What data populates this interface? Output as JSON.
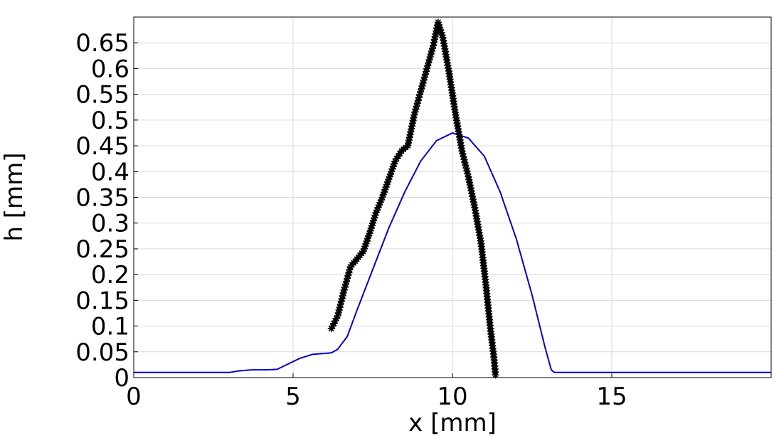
{
  "chart_data": {
    "type": "line",
    "xlabel": "x [mm]",
    "ylabel": "h [mm]",
    "xlim": [
      0,
      20
    ],
    "ylim": [
      0,
      0.7
    ],
    "x_ticks": [
      "0",
      "5",
      "10",
      "15"
    ],
    "y_ticks": [
      "0",
      "0.05",
      "0.1",
      "0.15",
      "0.2",
      "0.25",
      "0.3",
      "0.35",
      "0.4",
      "0.45",
      "0.5",
      "0.55",
      "0.6",
      "0.65"
    ],
    "grid": true,
    "legend": "none",
    "series": [
      {
        "color": "#0000cc",
        "marker": "none",
        "points": [
          [
            0,
            0.01
          ],
          [
            3.0,
            0.01
          ],
          [
            3.3,
            0.013
          ],
          [
            3.7,
            0.015
          ],
          [
            4.2,
            0.015
          ],
          [
            4.5,
            0.016
          ],
          [
            4.8,
            0.025
          ],
          [
            5.2,
            0.037
          ],
          [
            5.6,
            0.045
          ],
          [
            6.0,
            0.047
          ],
          [
            6.2,
            0.048
          ],
          [
            6.4,
            0.055
          ],
          [
            6.7,
            0.08
          ],
          [
            7.0,
            0.13
          ],
          [
            7.5,
            0.21
          ],
          [
            8.0,
            0.29
          ],
          [
            8.5,
            0.36
          ],
          [
            9.0,
            0.42
          ],
          [
            9.5,
            0.46
          ],
          [
            10.0,
            0.475
          ],
          [
            10.5,
            0.465
          ],
          [
            11.0,
            0.43
          ],
          [
            11.5,
            0.36
          ],
          [
            12.0,
            0.27
          ],
          [
            12.5,
            0.16
          ],
          [
            12.9,
            0.06
          ],
          [
            13.1,
            0.015
          ],
          [
            13.2,
            0.01
          ],
          [
            14.0,
            0.01
          ],
          [
            20.0,
            0.01
          ]
        ]
      },
      {
        "color": "#000000",
        "marker": "star",
        "points": [
          [
            6.2,
            0.095
          ],
          [
            6.4,
            0.12
          ],
          [
            6.6,
            0.17
          ],
          [
            6.8,
            0.215
          ],
          [
            7.0,
            0.23
          ],
          [
            7.2,
            0.245
          ],
          [
            7.4,
            0.28
          ],
          [
            7.6,
            0.32
          ],
          [
            7.8,
            0.35
          ],
          [
            8.0,
            0.385
          ],
          [
            8.2,
            0.42
          ],
          [
            8.4,
            0.44
          ],
          [
            8.6,
            0.45
          ],
          [
            8.8,
            0.51
          ],
          [
            9.0,
            0.555
          ],
          [
            9.2,
            0.6
          ],
          [
            9.4,
            0.645
          ],
          [
            9.55,
            0.69
          ],
          [
            9.7,
            0.66
          ],
          [
            9.9,
            0.59
          ],
          [
            10.1,
            0.51
          ],
          [
            10.3,
            0.44
          ],
          [
            10.5,
            0.39
          ],
          [
            10.7,
            0.33
          ],
          [
            10.9,
            0.26
          ],
          [
            11.05,
            0.18
          ],
          [
            11.2,
            0.09
          ],
          [
            11.3,
            0.04
          ],
          [
            11.35,
            0.005
          ]
        ]
      }
    ]
  }
}
